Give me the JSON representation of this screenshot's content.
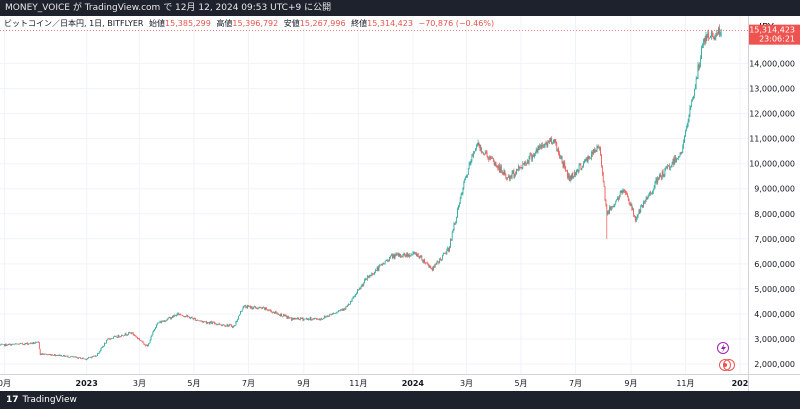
{
  "header": {
    "caption": "MONEY_VOICE が TradingView.com で 12月 12, 2024 09:53 UTC+9 に公開"
  },
  "legend": {
    "symbol": "ビットコイン／日本円, 1日, BITFLYER",
    "open_label": "始値",
    "open": "15,385,299",
    "high_label": "高値",
    "high": "15,396,792",
    "low_label": "安値",
    "low": "15,267,996",
    "close_label": "終値",
    "close": "15,314,423",
    "change": "−70,876 (−0.46%)"
  },
  "price_tag": {
    "price": "15,314,423",
    "countdown": "23:06:21"
  },
  "footer": {
    "brand": "TradingView",
    "logo_glyph": "17"
  },
  "colors": {
    "up": "#26a69a",
    "down": "#ef5350",
    "grid": "#f0f3fa",
    "axis_text": "#131722",
    "price_line": "#ef5350",
    "background": "#ffffff"
  },
  "icons": [
    "lightning-icon",
    "target-icon"
  ],
  "chart_data": {
    "type": "candlestick",
    "currency": "JPY",
    "y_ticks": [
      "2,000,000",
      "3,000,000",
      "4,000,000",
      "5,000,000",
      "6,000,000",
      "7,000,000",
      "8,000,000",
      "9,000,000",
      "10,000,000",
      "11,000,000",
      "12,000,000",
      "13,000,000",
      "14,000,000"
    ],
    "ylim": [
      1600000,
      15900000
    ],
    "x_ticks": [
      "0月",
      "2023",
      "3月",
      "5月",
      "7月",
      "9月",
      "11月",
      "2024",
      "3月",
      "5月",
      "7月",
      "9月",
      "11月",
      "202"
    ],
    "x_tick_dates": [
      "2022-10-01",
      "2023-01-01",
      "2023-03-01",
      "2023-05-01",
      "2023-07-01",
      "2023-09-01",
      "2023-11-01",
      "2024-01-01",
      "2024-03-01",
      "2024-05-01",
      "2024-07-01",
      "2024-09-01",
      "2024-11-01",
      "2025-01-01"
    ],
    "xlim": [
      "2022-09-26",
      "2025-01-10"
    ],
    "approx_close_path": [
      [
        "2022-09-26",
        2750000
      ],
      [
        "2022-10-20",
        2800000
      ],
      [
        "2022-11-08",
        2850000
      ],
      [
        "2022-11-10",
        2400000
      ],
      [
        "2022-12-01",
        2350000
      ],
      [
        "2022-12-31",
        2200000
      ],
      [
        "2023-01-12",
        2350000
      ],
      [
        "2023-01-25",
        3000000
      ],
      [
        "2023-02-20",
        3250000
      ],
      [
        "2023-03-10",
        2700000
      ],
      [
        "2023-03-20",
        3600000
      ],
      [
        "2023-04-14",
        4000000
      ],
      [
        "2023-05-10",
        3700000
      ],
      [
        "2023-06-15",
        3500000
      ],
      [
        "2023-06-25",
        4300000
      ],
      [
        "2023-07-20",
        4200000
      ],
      [
        "2023-08-18",
        3800000
      ],
      [
        "2023-09-20",
        3800000
      ],
      [
        "2023-10-20",
        4300000
      ],
      [
        "2023-11-10",
        5400000
      ],
      [
        "2023-12-08",
        6300000
      ],
      [
        "2024-01-05",
        6400000
      ],
      [
        "2024-01-23",
        5800000
      ],
      [
        "2024-02-10",
        6600000
      ],
      [
        "2024-02-28",
        9300000
      ],
      [
        "2024-03-12",
        10800000
      ],
      [
        "2024-04-17",
        9400000
      ],
      [
        "2024-05-21",
        10600000
      ],
      [
        "2024-06-06",
        11000000
      ],
      [
        "2024-06-24",
        9400000
      ],
      [
        "2024-07-28",
        10700000
      ],
      [
        "2024-08-05",
        8000000
      ],
      [
        "2024-08-25",
        9000000
      ],
      [
        "2024-09-06",
        7800000
      ],
      [
        "2024-09-30",
        9300000
      ],
      [
        "2024-10-28",
        10500000
      ],
      [
        "2024-11-11",
        13000000
      ],
      [
        "2024-11-22",
        15000000
      ],
      [
        "2024-12-05",
        15200000
      ],
      [
        "2024-12-11",
        15314423
      ]
    ],
    "annotations": [
      {
        "date": "2024-08-05",
        "low": 7000000
      }
    ]
  }
}
